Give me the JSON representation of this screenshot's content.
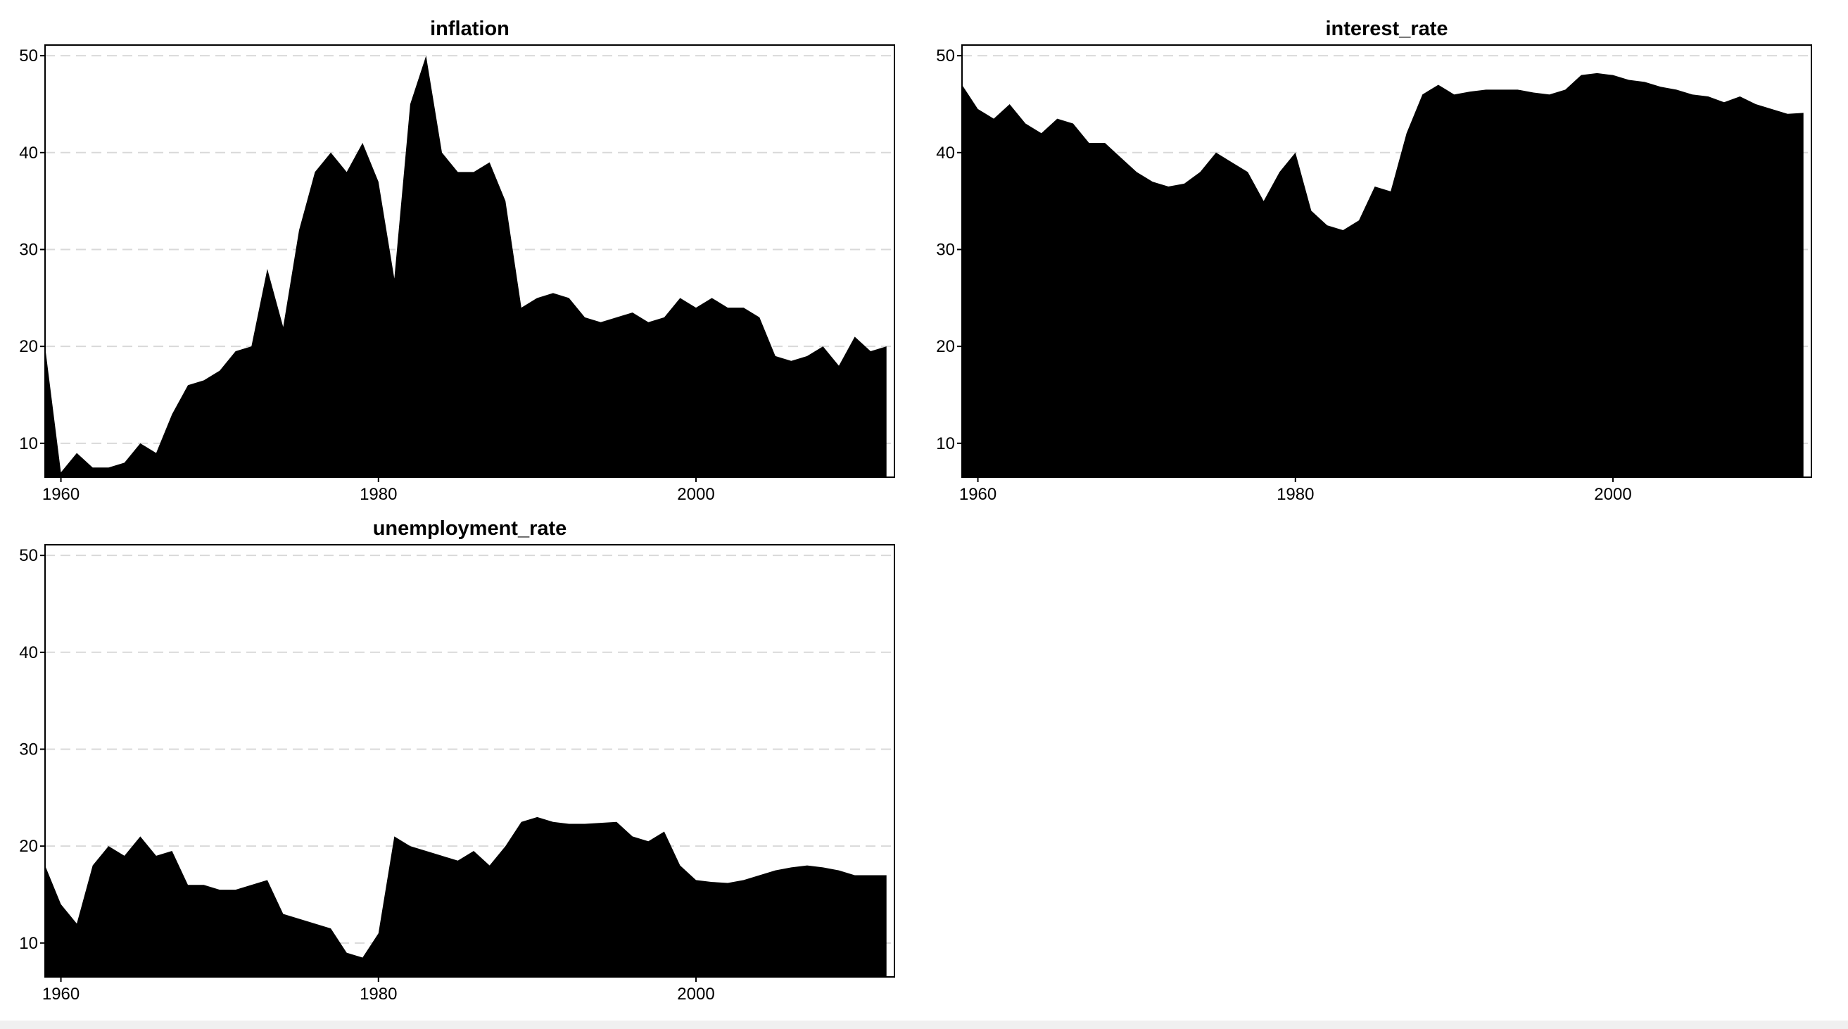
{
  "chart_data": [
    {
      "type": "area",
      "title": "inflation",
      "color": "#000000",
      "grid": true,
      "x": [
        1959,
        1960,
        1961,
        1962,
        1963,
        1964,
        1965,
        1966,
        1967,
        1968,
        1969,
        1970,
        1971,
        1972,
        1973,
        1974,
        1975,
        1976,
        1977,
        1978,
        1979,
        1980,
        1981,
        1982,
        1983,
        1984,
        1985,
        1986,
        1987,
        1988,
        1989,
        1990,
        1991,
        1992,
        1993,
        1994,
        1995,
        1996,
        1997,
        1998,
        1999,
        2000,
        2001,
        2002,
        2003,
        2004,
        2005,
        2006,
        2007,
        2008,
        2009,
        2010,
        2011,
        2012
      ],
      "values": [
        20,
        7,
        9,
        7.5,
        7.5,
        8,
        10,
        9,
        13,
        16,
        16.5,
        17.5,
        19.5,
        20,
        28,
        22,
        32,
        38,
        40,
        38,
        41,
        37,
        27,
        45,
        50,
        40,
        38,
        38,
        39,
        35,
        24,
        25,
        25.5,
        25,
        23,
        22.5,
        23,
        23.5,
        22.5,
        23,
        25,
        24,
        25,
        24,
        24,
        23,
        19,
        18.5,
        19,
        20,
        18,
        21,
        19.5,
        20
      ],
      "xlim": [
        1959,
        2012.5
      ],
      "ylim": [
        6.5,
        51.1
      ],
      "xticks": [
        1960,
        1980,
        2000
      ],
      "yticks": [
        10,
        20,
        30,
        40,
        50
      ]
    },
    {
      "type": "area",
      "title": "interest_rate",
      "color": "#000000",
      "grid": true,
      "x": [
        1959,
        1960,
        1961,
        1962,
        1963,
        1964,
        1965,
        1966,
        1967,
        1968,
        1969,
        1970,
        1971,
        1972,
        1973,
        1974,
        1975,
        1976,
        1977,
        1978,
        1979,
        1980,
        1981,
        1982,
        1983,
        1984,
        1985,
        1986,
        1987,
        1988,
        1989,
        1990,
        1991,
        1992,
        1993,
        1994,
        1995,
        1996,
        1997,
        1998,
        1999,
        2000,
        2001,
        2002,
        2003,
        2004,
        2005,
        2006,
        2007,
        2008,
        2009,
        2010,
        2011,
        2012
      ],
      "values": [
        47,
        44.5,
        43.5,
        45,
        43,
        42,
        43.5,
        43,
        41,
        41,
        39.5,
        38,
        37,
        36.5,
        36.8,
        38,
        40,
        39,
        38,
        35,
        38,
        40,
        34,
        32.5,
        32,
        33,
        36.5,
        36,
        42,
        46,
        47,
        46,
        46.3,
        46.5,
        46.5,
        46.5,
        46.2,
        46,
        46.5,
        48,
        48.2,
        48,
        47.5,
        47.3,
        46.8,
        46.5,
        46,
        45.8,
        45.2,
        45.8,
        45,
        44.5,
        44,
        44.1
      ],
      "xlim": [
        1959,
        2012.5
      ],
      "ylim": [
        6.5,
        51.1
      ],
      "xticks": [
        1960,
        1980,
        2000
      ],
      "yticks": [
        10,
        20,
        30,
        40,
        50
      ]
    },
    {
      "type": "area",
      "title": "unemployment_rate",
      "color": "#000000",
      "grid": true,
      "x": [
        1959,
        1960,
        1961,
        1962,
        1963,
        1964,
        1965,
        1966,
        1967,
        1968,
        1969,
        1970,
        1971,
        1972,
        1973,
        1974,
        1975,
        1976,
        1977,
        1978,
        1979,
        1980,
        1981,
        1982,
        1983,
        1984,
        1985,
        1986,
        1987,
        1988,
        1989,
        1990,
        1991,
        1992,
        1993,
        1994,
        1995,
        1996,
        1997,
        1998,
        1999,
        2000,
        2001,
        2002,
        2003,
        2004,
        2005,
        2006,
        2007,
        2008,
        2009,
        2010,
        2011,
        2012
      ],
      "values": [
        18,
        14,
        12,
        18,
        20,
        19,
        21,
        19,
        19.5,
        16,
        16,
        15.5,
        15.5,
        16,
        16.5,
        13,
        12.5,
        12,
        11.5,
        9,
        8.5,
        11,
        21,
        20,
        19.5,
        19,
        18.5,
        19.5,
        18,
        20,
        22.5,
        23,
        22.5,
        22.3,
        22.3,
        22.4,
        22.5,
        21,
        20.5,
        21.5,
        18,
        16.5,
        16.3,
        16.2,
        16.5,
        17,
        17.5,
        17.8,
        18,
        17.8,
        17.5,
        17,
        17,
        17
      ],
      "xlim": [
        1959,
        2012.5
      ],
      "ylim": [
        6.5,
        51.1
      ],
      "xticks": [
        1960,
        1980,
        2000
      ],
      "yticks": [
        10,
        20,
        30,
        40,
        50
      ]
    }
  ]
}
